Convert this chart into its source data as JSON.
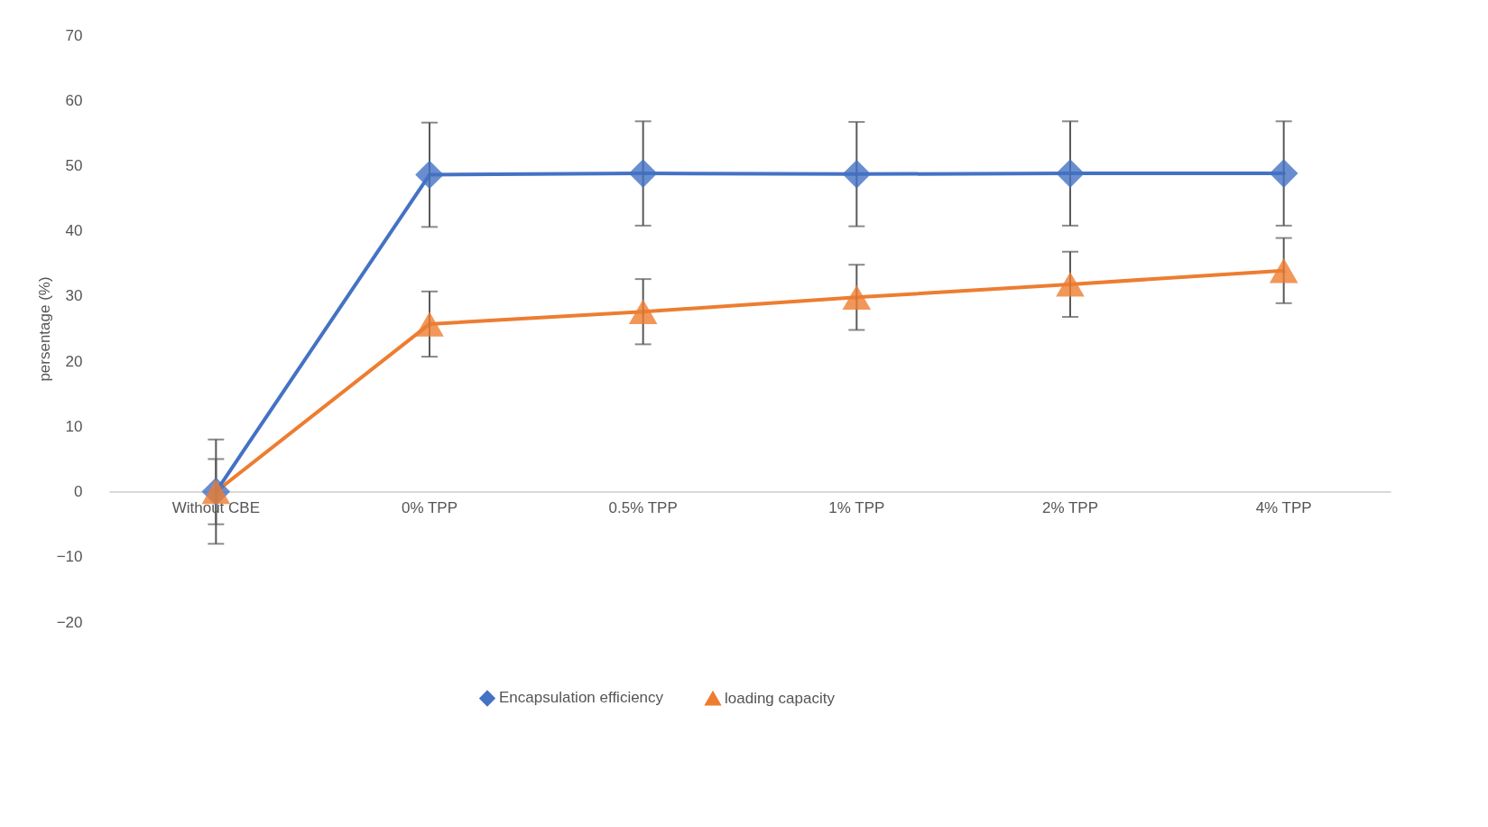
{
  "chart_data": {
    "type": "line",
    "ylabel": "persentage (%)",
    "categories": [
      "Without CBE",
      "0% TPP",
      "0.5% TPP",
      "1% TPP",
      "2% TPP",
      "4% TPP"
    ],
    "series": [
      {
        "name": "Encapsulation efficiency",
        "color": "#4472c4",
        "marker": "diamond",
        "values": [
          0,
          48.6,
          48.8,
          48.7,
          48.8,
          48.8
        ],
        "errors": [
          8,
          8,
          8,
          8,
          8,
          8
        ]
      },
      {
        "name": "loading capacity",
        "color": "#ed7d31",
        "marker": "triangle",
        "values": [
          0,
          25.7,
          27.6,
          29.8,
          31.8,
          33.9
        ],
        "errors": [
          5,
          5,
          5,
          5,
          5,
          5
        ]
      }
    ],
    "ylim": [
      -20,
      70
    ],
    "yticks": [
      -20,
      -10,
      0,
      10,
      20,
      30,
      40,
      50,
      60,
      70
    ],
    "grid": false,
    "legend": "bottom",
    "line_style": "solid"
  }
}
